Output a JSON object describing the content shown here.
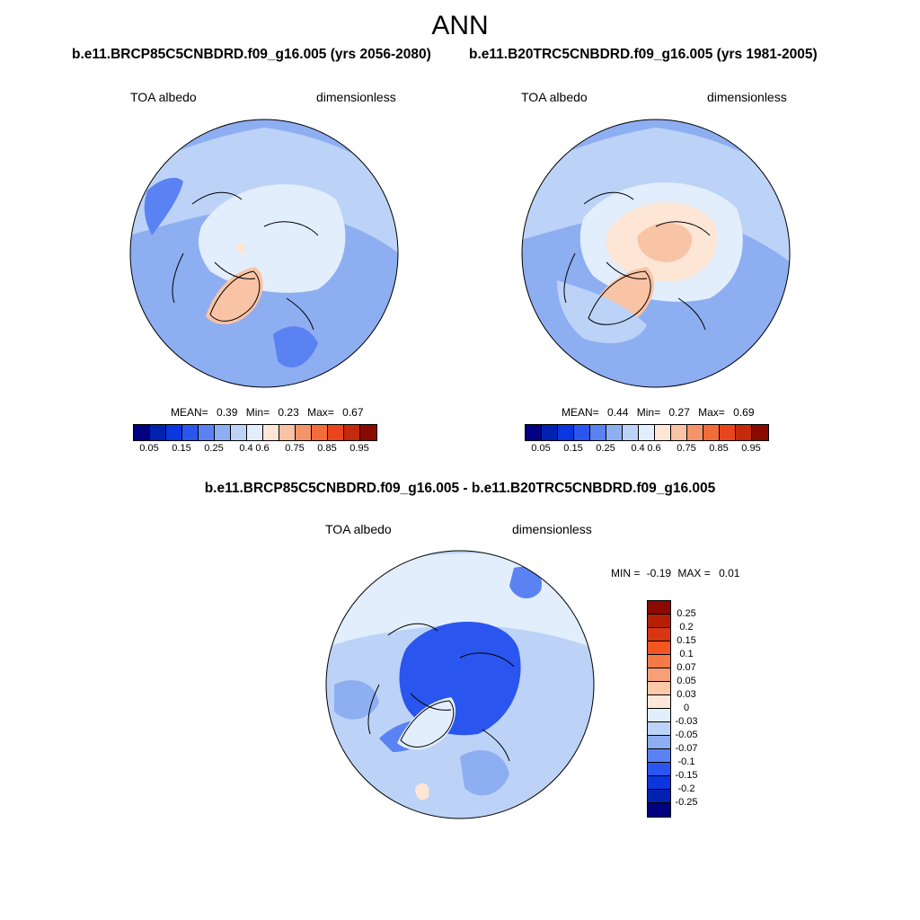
{
  "title": "ANN",
  "panels": {
    "left": {
      "case": "b.e11.BRCP85C5CNBDRD.f09_g16.005 (yrs 2056-2080)",
      "variable": "TOA albedo",
      "units": "dimensionless",
      "mean_label": "MEAN=",
      "mean": "0.39",
      "min_label": "Min=",
      "min": "0.23",
      "max_label": "Max=",
      "max": "0.67"
    },
    "right": {
      "case": "b.e11.B20TRC5CNBDRD.f09_g16.005 (yrs 1981-2005)",
      "variable": "TOA albedo",
      "units": "dimensionless",
      "mean_label": "MEAN=",
      "mean": "0.44",
      "min_label": "Min=",
      "min": "0.27",
      "max_label": "Max=",
      "max": "0.69"
    },
    "diff": {
      "case": "b.e11.BRCP85C5CNBDRD.f09_g16.005 - b.e11.B20TRC5CNBDRD.f09_g16.005",
      "variable": "TOA albedo",
      "units": "dimensionless",
      "min_label": "MIN =",
      "min": "-0.19",
      "max_label": "MAX =",
      "max": "0.01"
    }
  },
  "colorbar_main": {
    "colors": [
      "#000080",
      "#0022b0",
      "#0a36e0",
      "#2a55ee",
      "#5a82f2",
      "#8eaef2",
      "#bcd3f7",
      "#e2eefc",
      "#fde6d6",
      "#f9c3a5",
      "#f5946a",
      "#f26b3a",
      "#e8451e",
      "#c42a0c",
      "#8b0a00"
    ],
    "tick_labels": [
      "0.05",
      "0.15",
      "0.25",
      "0.4",
      "0.6",
      "0.75",
      "0.85",
      "0.95"
    ]
  },
  "colorbar_diff": {
    "colors": [
      "#8b0a00",
      "#b51f05",
      "#d83612",
      "#f5551e",
      "#f57a48",
      "#f89f78",
      "#fbc8a8",
      "#fde7d8",
      "#e2eefc",
      "#bcd3f7",
      "#8eaef2",
      "#5a82f2",
      "#2a55ee",
      "#0a36e0",
      "#0022b0",
      "#000080"
    ],
    "tick_labels": [
      "0.25",
      "0.2",
      "0.15",
      "0.1",
      "0.07",
      "0.05",
      "0.03",
      "0",
      "-0.03",
      "-0.05",
      "-0.07",
      "-0.1",
      "-0.15",
      "-0.2",
      "-0.25"
    ]
  }
}
